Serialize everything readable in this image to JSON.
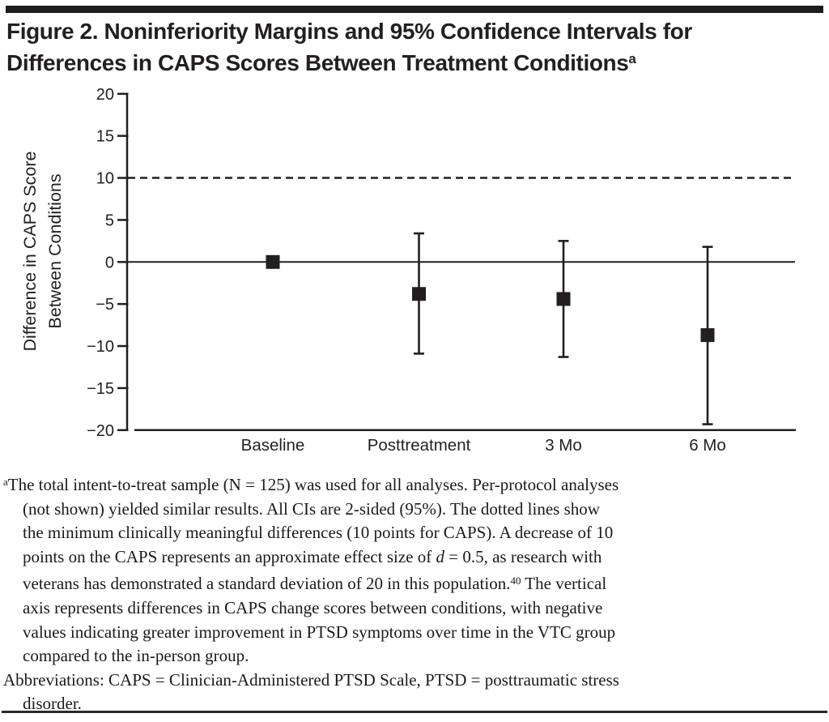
{
  "figure": {
    "title_line1": "Figure 2. Noninferiority Margins and 95% Confidence Intervals for",
    "title_line2": "Differences in CAPS Scores Between Treatment Conditions",
    "title_footnote_marker": "a"
  },
  "chart_data": {
    "type": "scatter",
    "categories": [
      "Baseline",
      "Posttreatment",
      "3 Mo",
      "6 Mo"
    ],
    "series": [
      {
        "values": [
          0,
          -3.8,
          -4.4,
          -8.7
        ],
        "ci_lower": [
          null,
          -10.9,
          -11.3,
          -19.3
        ],
        "ci_upper": [
          null,
          3.4,
          2.5,
          1.8
        ]
      }
    ],
    "ylabel_line1": "Difference in CAPS Score",
    "ylabel_line2": "Between Conditions",
    "xlabel": "",
    "ylim": [
      -20,
      20
    ],
    "yticks": [
      20,
      15,
      10,
      5,
      0,
      -5,
      -10,
      -15,
      -20
    ],
    "noninferiority_margin_line": 10,
    "zero_reference_line": 0,
    "margin_line_style": "dashed",
    "grid": false,
    "legend_position": "none",
    "marker": "filled-square",
    "ink_color": "#231f20",
    "background_color": "#ffffff"
  },
  "footnote": {
    "lines": [
      {
        "indent": false,
        "segments": [
          {
            "text": "a",
            "style": "sup"
          },
          {
            "text": "The total intent-to-treat sample (N = 125) was used for all analyses. Per-protocol analyses",
            "style": "normal"
          }
        ]
      },
      {
        "indent": true,
        "segments": [
          {
            "text": "(not shown) yielded similar results. All CIs are 2-sided (95%). The dotted lines show",
            "style": "normal"
          }
        ]
      },
      {
        "indent": true,
        "segments": [
          {
            "text": "the minimum clinically meaningful differences (10 points for CAPS). A decrease of 10",
            "style": "normal"
          }
        ]
      },
      {
        "indent": true,
        "segments": [
          {
            "text": "points on the CAPS represents an approximate effect size of ",
            "style": "normal"
          },
          {
            "text": "d",
            "style": "italic"
          },
          {
            "text": " = 0.5, as research with",
            "style": "normal"
          }
        ]
      },
      {
        "indent": true,
        "segments": [
          {
            "text": "veterans has demonstrated a standard deviation of 20 in this population.",
            "style": "normal"
          },
          {
            "text": "40",
            "style": "sup"
          },
          {
            "text": " The vertical",
            "style": "normal"
          }
        ]
      },
      {
        "indent": true,
        "segments": [
          {
            "text": "axis represents differences in CAPS change scores between conditions, with negative",
            "style": "normal"
          }
        ]
      },
      {
        "indent": true,
        "segments": [
          {
            "text": "values indicating greater improvement in PTSD symptoms over time in the VTC group",
            "style": "normal"
          }
        ]
      },
      {
        "indent": true,
        "segments": [
          {
            "text": "compared to the in-person group.",
            "style": "normal"
          }
        ]
      },
      {
        "indent": false,
        "segments": [
          {
            "text": "Abbreviations: CAPS = Clinician-Administered PTSD Scale, PTSD = posttraumatic stress",
            "style": "normal"
          }
        ]
      },
      {
        "indent": true,
        "segments": [
          {
            "text": "disorder.",
            "style": "normal"
          }
        ]
      }
    ]
  }
}
